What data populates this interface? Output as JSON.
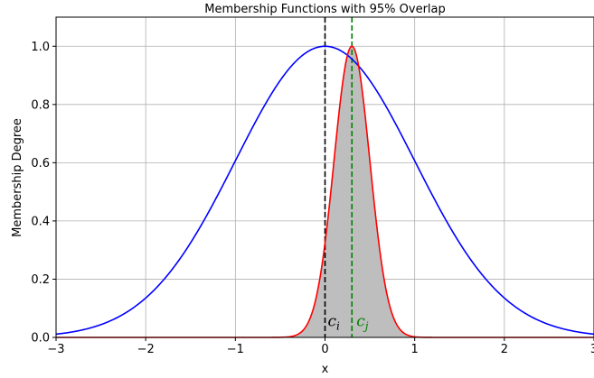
{
  "chart_data": {
    "type": "line",
    "title": "Membership Functions with 95% Overlap",
    "xlabel": "x",
    "ylabel": "Membership Degree",
    "xlim": [
      -3,
      3
    ],
    "ylim": [
      0,
      1.1
    ],
    "xticks": [
      -3,
      -2,
      -1,
      0,
      1,
      2,
      3
    ],
    "xtick_labels": [
      "−3",
      "−2",
      "−1",
      "0",
      "1",
      "2",
      "3"
    ],
    "yticks": [
      0.0,
      0.2,
      0.4,
      0.6,
      0.8,
      1.0
    ],
    "ytick_labels": [
      "0.0",
      "0.2",
      "0.4",
      "0.6",
      "0.8",
      "1.0"
    ],
    "grid": true,
    "series": [
      {
        "function": "gaussian",
        "center": 0.0,
        "sigma": 1.0,
        "color": "#0000ff"
      },
      {
        "function": "gaussian",
        "center": 0.3,
        "sigma": 0.2,
        "color": "#ff0000"
      }
    ],
    "fill": {
      "series_index": 1,
      "color": "#bebebe"
    },
    "vlines": [
      {
        "x": 0.0,
        "color": "#000000",
        "style": "dashed"
      },
      {
        "x": 0.3,
        "color": "#008000",
        "style": "dashed"
      }
    ],
    "annotations": [
      {
        "base": "c",
        "sub": "i",
        "x": 0.03,
        "y": 0.03,
        "color": "#000000"
      },
      {
        "base": "c",
        "sub": "j",
        "x": 0.35,
        "y": 0.03,
        "color": "#008000"
      }
    ]
  }
}
